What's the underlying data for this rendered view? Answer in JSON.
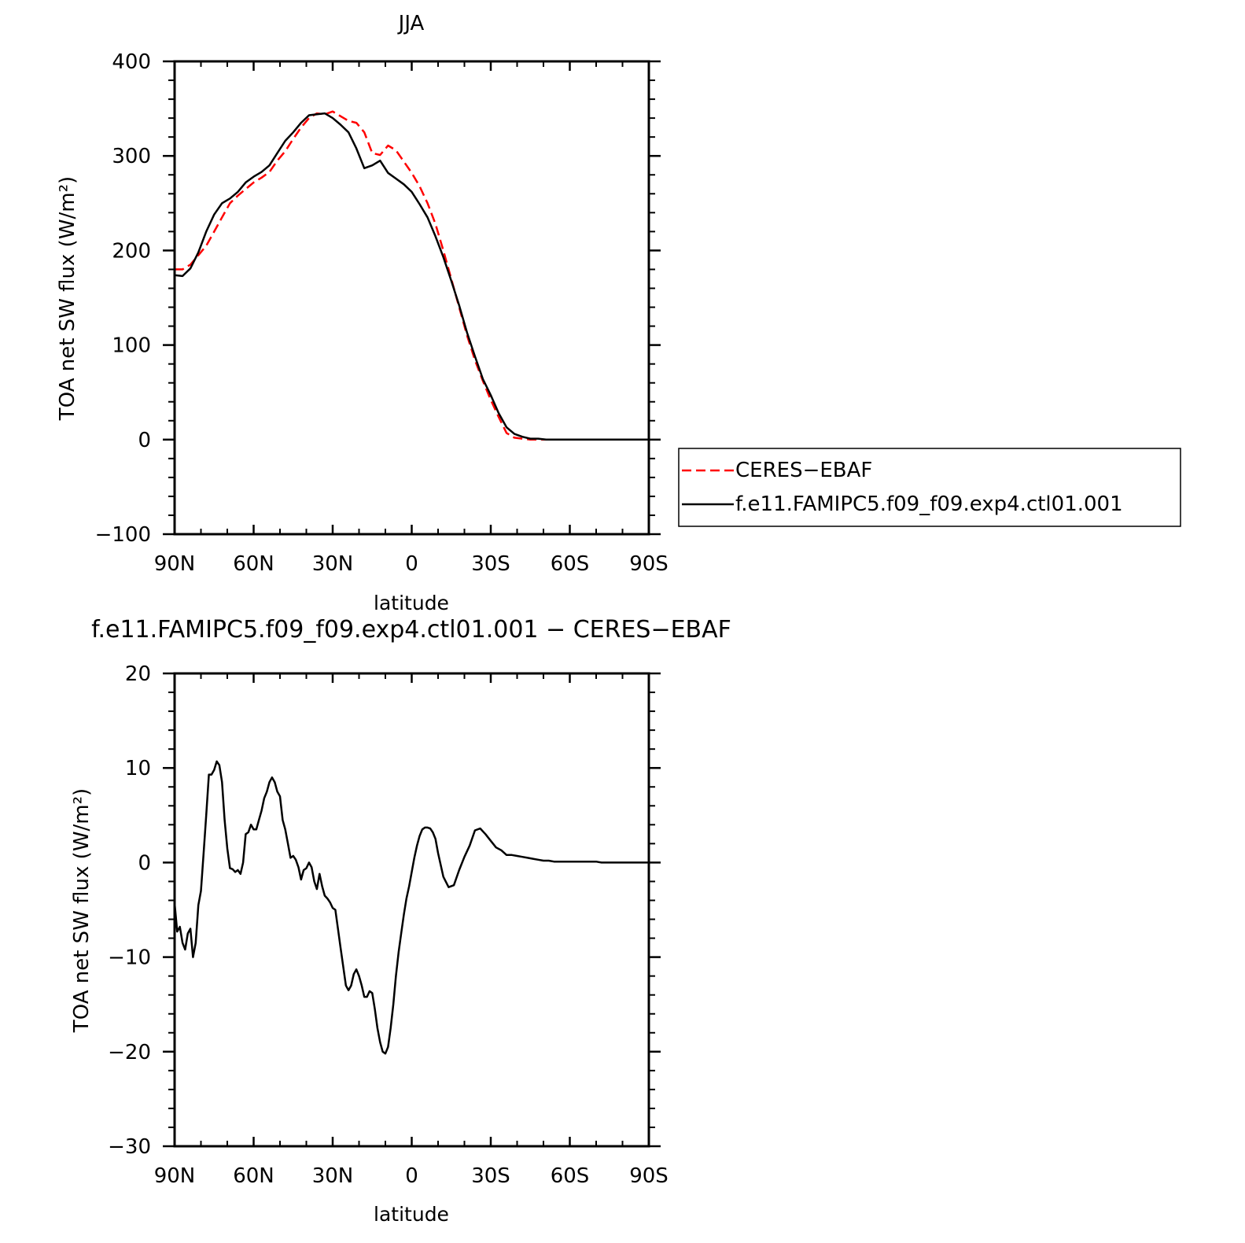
{
  "chart_data": [
    {
      "type": "line",
      "title": "JJA",
      "xlabel": "latitude",
      "ylabel": "TOA net SW flux (W/m²)",
      "xlim": [
        90,
        -90
      ],
      "ylim": [
        -100,
        400
      ],
      "xtick_values": [
        90,
        60,
        30,
        0,
        -30,
        -60,
        -90
      ],
      "xtick_labels": [
        "90N",
        "60N",
        "30N",
        "0",
        "30S",
        "60S",
        "90S"
      ],
      "ytick_values": [
        400,
        300,
        200,
        100,
        0,
        -100
      ],
      "ytick_labels": [
        "400",
        "300",
        "200",
        "100",
        "0",
        "−100"
      ],
      "legend_position": "right",
      "series": [
        {
          "name": "CERES−EBAF",
          "color": "#ff0000",
          "dash": "dashed",
          "x": [
            90,
            87,
            84,
            81,
            78,
            75,
            72,
            69,
            66,
            63,
            60,
            57,
            54,
            51,
            48,
            45,
            42,
            39,
            36,
            33,
            30,
            27,
            24,
            21,
            18,
            15,
            12,
            9,
            6,
            3,
            0,
            -3,
            -6,
            -9,
            -12,
            -15,
            -18,
            -21,
            -24,
            -27,
            -30,
            -33,
            -36,
            -39,
            -42,
            -45,
            -48,
            -51,
            -54,
            -57,
            -60,
            -63,
            -66,
            -69,
            -72,
            -75,
            -78,
            -81,
            -84,
            -87,
            -90
          ],
          "y": [
            180,
            180,
            185,
            195,
            205,
            220,
            235,
            250,
            258,
            265,
            272,
            277,
            283,
            295,
            305,
            318,
            330,
            340,
            345,
            344,
            347,
            342,
            337,
            335,
            325,
            303,
            301,
            311,
            306,
            294,
            282,
            268,
            250,
            228,
            200,
            170,
            140,
            110,
            84,
            62,
            42,
            24,
            7,
            2,
            1,
            0,
            0,
            0,
            0,
            0,
            0,
            0,
            0,
            0,
            0,
            0,
            0,
            0,
            0,
            0,
            0
          ]
        },
        {
          "name": "f.e11.FAMIPC5.f09_f09.exp4.ctl01.001",
          "color": "#000000",
          "dash": "solid",
          "x": [
            90,
            87,
            84,
            81,
            78,
            75,
            72,
            69,
            66,
            63,
            60,
            57,
            54,
            51,
            48,
            45,
            42,
            39,
            36,
            33,
            30,
            27,
            24,
            21,
            18,
            15,
            12,
            9,
            6,
            3,
            0,
            -3,
            -6,
            -9,
            -12,
            -15,
            -18,
            -21,
            -24,
            -27,
            -30,
            -33,
            -36,
            -39,
            -42,
            -45,
            -48,
            -51,
            -54,
            -57,
            -60,
            -63,
            -66,
            -69,
            -72,
            -75,
            -78,
            -81,
            -84,
            -87,
            -90
          ],
          "y": [
            174,
            173,
            181,
            198,
            220,
            238,
            250,
            255,
            262,
            272,
            278,
            283,
            290,
            303,
            316,
            325,
            335,
            343,
            344,
            345,
            340,
            333,
            325,
            308,
            287,
            290,
            295,
            282,
            276,
            270,
            262,
            249,
            235,
            215,
            193,
            168,
            142,
            113,
            88,
            64,
            47,
            28,
            13,
            6,
            3,
            1,
            1,
            0,
            0,
            0,
            0,
            0,
            0,
            0,
            0,
            0,
            0,
            0,
            0,
            0,
            0
          ]
        }
      ]
    },
    {
      "type": "line",
      "title": "f.e11.FAMIPC5.f09_f09.exp4.ctl01.001 − CERES−EBAF",
      "xlabel": "latitude",
      "ylabel": "TOA net SW flux (W/m²)",
      "xlim": [
        90,
        -90
      ],
      "ylim": [
        -30,
        20
      ],
      "xtick_values": [
        90,
        60,
        30,
        0,
        -30,
        -60,
        -90
      ],
      "xtick_labels": [
        "90N",
        "60N",
        "30N",
        "0",
        "30S",
        "60S",
        "90S"
      ],
      "ytick_values": [
        20,
        10,
        0,
        -10,
        -20,
        -30
      ],
      "ytick_labels": [
        "20",
        "10",
        "0",
        "−10",
        "−20",
        "−30"
      ],
      "series": [
        {
          "color": "#000000",
          "x": [
            90,
            89,
            88,
            87,
            86,
            85,
            84,
            83,
            82,
            81,
            80,
            79,
            78,
            77,
            76,
            75,
            74,
            73,
            72,
            71,
            70,
            69,
            68,
            67,
            66,
            65,
            64,
            63,
            62,
            61,
            60,
            59,
            58,
            57,
            56,
            55,
            54,
            53,
            52,
            51,
            50,
            49,
            48,
            47,
            46,
            45,
            44,
            43,
            42,
            41,
            40,
            39,
            38,
            37,
            36,
            35,
            34,
            33,
            32,
            31,
            30,
            29,
            28,
            27,
            26,
            25,
            24,
            23,
            22,
            21,
            20,
            19,
            18,
            17,
            16,
            15,
            14,
            13,
            12,
            11,
            10,
            9,
            8,
            7,
            6,
            5,
            4,
            3,
            2,
            1,
            0,
            -1,
            -2,
            -3,
            -4,
            -5,
            -6,
            -7,
            -8,
            -9,
            -10,
            -12,
            -14,
            -16,
            -18,
            -20,
            -22,
            -24,
            -26,
            -28,
            -30,
            -32,
            -34,
            -36,
            -38,
            -40,
            -42,
            -44,
            -46,
            -48,
            -50,
            -52,
            -54,
            -56,
            -58,
            -60,
            -62,
            -64,
            -66,
            -68,
            -70,
            -72,
            -75,
            -78,
            -81,
            -84,
            -87,
            -90
          ],
          "y": [
            -4.3,
            -7.3,
            -6.8,
            -8.5,
            -9.2,
            -7.5,
            -7.0,
            -10.0,
            -8.5,
            -4.5,
            -3.0,
            1.0,
            5.0,
            9.3,
            9.3,
            9.8,
            10.7,
            10.3,
            8.5,
            4.5,
            1.5,
            -0.6,
            -0.7,
            -1.0,
            -0.8,
            -1.2,
            0.0,
            3.0,
            3.2,
            4.0,
            3.5,
            3.5,
            4.5,
            5.5,
            6.8,
            7.5,
            8.5,
            9.0,
            8.5,
            7.5,
            7.0,
            4.5,
            3.5,
            2.0,
            0.5,
            0.7,
            0.3,
            -0.5,
            -1.8,
            -0.8,
            -0.6,
            0.0,
            -0.5,
            -2.0,
            -2.8,
            -1.2,
            -2.5,
            -3.5,
            -3.8,
            -4.2,
            -4.8,
            -5.0,
            -7.0,
            -9.0,
            -11.0,
            -13.0,
            -13.5,
            -13.0,
            -11.8,
            -11.3,
            -12.0,
            -13.0,
            -14.2,
            -14.2,
            -13.6,
            -13.8,
            -15.5,
            -17.5,
            -19.0,
            -20.0,
            -20.2,
            -19.5,
            -17.5,
            -15.0,
            -12.0,
            -9.5,
            -7.5,
            -5.5,
            -3.8,
            -2.5,
            -1.0,
            0.5,
            1.8,
            2.8,
            3.5,
            3.7,
            3.7,
            3.6,
            3.2,
            2.5,
            1.0,
            -1.5,
            -2.6,
            -2.4,
            -0.8,
            0.6,
            1.8,
            3.4,
            3.6,
            3.0,
            2.3,
            1.6,
            1.3,
            0.8,
            0.8,
            0.7,
            0.6,
            0.5,
            0.4,
            0.3,
            0.2,
            0.2,
            0.1,
            0.1,
            0.1,
            0.1,
            0.1,
            0.1,
            0.1,
            0.1,
            0.1,
            0.0,
            0.0,
            0.0,
            0.0,
            0.0,
            0.0,
            0.0
          ]
        }
      ]
    }
  ]
}
